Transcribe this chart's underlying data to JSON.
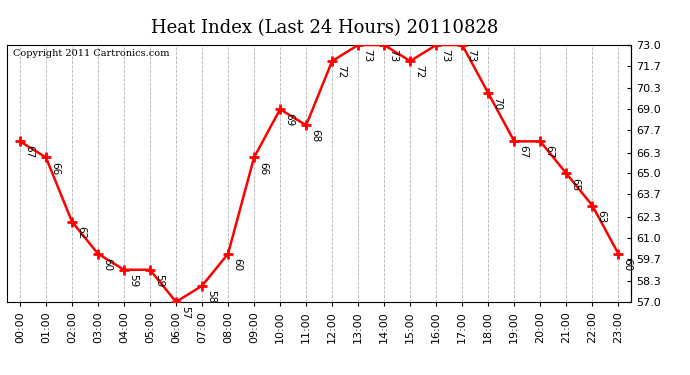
{
  "title": "Heat Index (Last 24 Hours) 20110828",
  "copyright": "Copyright 2011 Cartronics.com",
  "hours": [
    "00:00",
    "01:00",
    "02:00",
    "03:00",
    "04:00",
    "05:00",
    "06:00",
    "07:00",
    "08:00",
    "09:00",
    "10:00",
    "11:00",
    "12:00",
    "13:00",
    "14:00",
    "15:00",
    "16:00",
    "17:00",
    "18:00",
    "19:00",
    "20:00",
    "21:00",
    "22:00",
    "23:00"
  ],
  "values": [
    67,
    66,
    62,
    60,
    59,
    59,
    57,
    58,
    60,
    66,
    69,
    68,
    72,
    73,
    73,
    72,
    73,
    73,
    70,
    67,
    67,
    65,
    63,
    60
  ],
  "ylim": [
    57.0,
    73.0
  ],
  "yticks": [
    57.0,
    58.3,
    59.7,
    61.0,
    62.3,
    63.7,
    65.0,
    66.3,
    67.7,
    69.0,
    70.3,
    71.7,
    73.0
  ],
  "line_color": "red",
  "marker": "+",
  "marker_color": "red",
  "bg_color": "white",
  "grid_color": "#aaaaaa",
  "label_fontsize": 7.5,
  "title_fontsize": 13,
  "copyright_fontsize": 7,
  "tick_fontsize": 8
}
